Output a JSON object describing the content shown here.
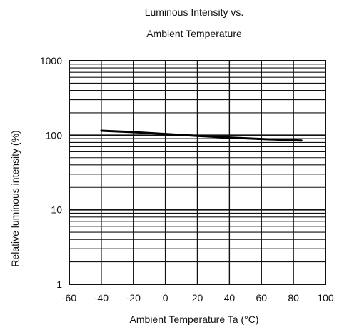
{
  "chart_data": {
    "type": "line",
    "title_lines": [
      "Luminous Intensity vs.",
      "Ambient Temperature"
    ],
    "xlabel": "Ambient Temperature Ta (°C)",
    "ylabel": "Relative luminous intensity   (%)",
    "xlim": [
      -60,
      100
    ],
    "ylim": [
      1,
      1000
    ],
    "y_scale": "log",
    "x_ticks": [
      -60,
      -40,
      -20,
      0,
      20,
      40,
      60,
      80,
      100
    ],
    "x_tick_labels": [
      "-60",
      "-40",
      "-20",
      "0",
      "20",
      "40",
      "60",
      "80",
      "100"
    ],
    "y_ticks": [
      1,
      10,
      100,
      1000
    ],
    "y_tick_labels": [
      "1",
      "10",
      "100",
      "1000"
    ],
    "grid": true,
    "series": [
      {
        "x": [
          -40,
          -20,
          0,
          20,
          40,
          60,
          85
        ],
        "y": [
          115,
          110,
          104,
          98,
          93,
          89,
          85
        ]
      }
    ]
  }
}
